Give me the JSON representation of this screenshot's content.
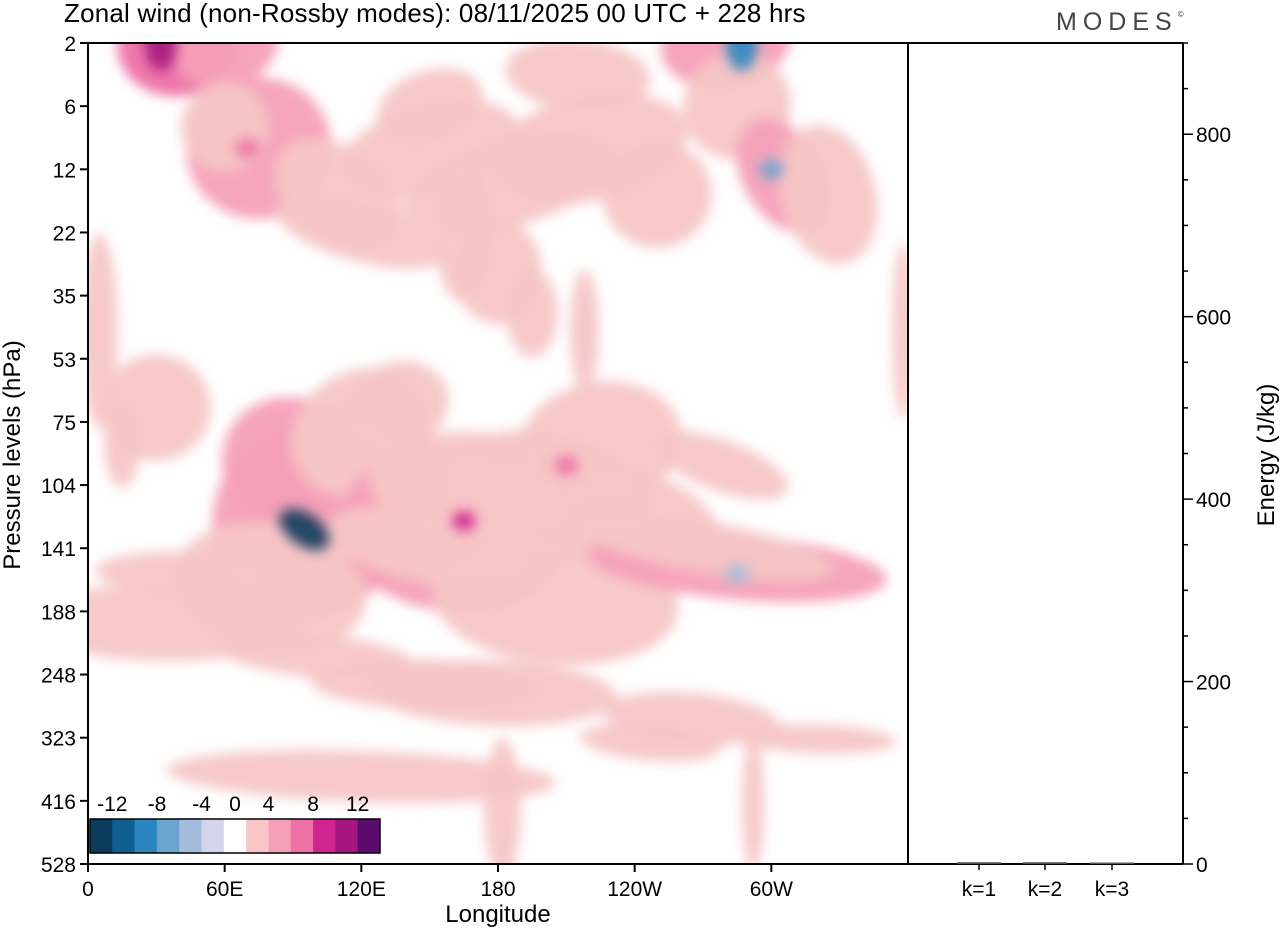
{
  "title": "Zonal wind (non-Rossby modes):  08/11/2025  00 UTC  + 228 hrs",
  "logo": "MODES",
  "chart_data": [
    {
      "type": "heatmap",
      "title": "Zonal wind (non-Rossby modes):  08/11/2025  00 UTC  + 228 hrs",
      "xlabel": "Longitude",
      "ylabel": "Pressure levels (hPa)",
      "x_ticks": [
        "0",
        "60E",
        "120E",
        "180",
        "120W",
        "60W"
      ],
      "x_tick_degrees": [
        0,
        60,
        120,
        180,
        240,
        300
      ],
      "xlim": [
        0,
        360
      ],
      "y_ticks": [
        "2",
        "6",
        "12",
        "22",
        "35",
        "53",
        "75",
        "104",
        "141",
        "188",
        "248",
        "323",
        "416",
        "528"
      ],
      "colorbar": {
        "labels": [
          "-12",
          "-8",
          "-4",
          "0",
          "4",
          "8",
          "12"
        ],
        "boundaries": [
          -14,
          -12,
          -10,
          -8,
          -6,
          -4,
          -2,
          2,
          4,
          6,
          8,
          10,
          12,
          14
        ],
        "colors": [
          "#0b3c5d",
          "#0d5f91",
          "#2b86bf",
          "#6ba5cf",
          "#a5bcdc",
          "#d3d6ea",
          "#ffffff",
          "#f7c6c6",
          "#f6a0b8",
          "#ee70a6",
          "#d02590",
          "#a5167e",
          "#5b0a6e"
        ]
      },
      "features": [
        {
          "name": "upper-stratosphere-westerly",
          "lon": 32,
          "level": 2,
          "value": 10
        },
        {
          "name": "upper-stratosphere-easterly",
          "lon": 287,
          "level": 2,
          "value": -10
        },
        {
          "name": "stratosphere-westerly",
          "lon": 70,
          "level": 10,
          "value": 6
        },
        {
          "name": "stratosphere-easterly",
          "lon": 300,
          "level": 12,
          "value": -7
        },
        {
          "name": "tropopause-easterly-jet",
          "lon": 95,
          "level": 130,
          "value": -13
        },
        {
          "name": "tropopause-westerly-160E",
          "lon": 165,
          "level": 125,
          "value": 8
        },
        {
          "name": "tropopause-westerly-150W",
          "lon": 210,
          "level": 95,
          "value": 6
        },
        {
          "name": "upper-trop-easterly-70W",
          "lon": 285,
          "level": 160,
          "value": -6
        }
      ]
    },
    {
      "type": "bar",
      "categories": [
        "k=1",
        "k=2",
        "k=3"
      ],
      "values": [
        2,
        2,
        1
      ],
      "ylabel": "Energy (J/kg)",
      "yticks": [
        0,
        200,
        400,
        600,
        800
      ],
      "ylim": [
        0,
        900
      ]
    }
  ]
}
